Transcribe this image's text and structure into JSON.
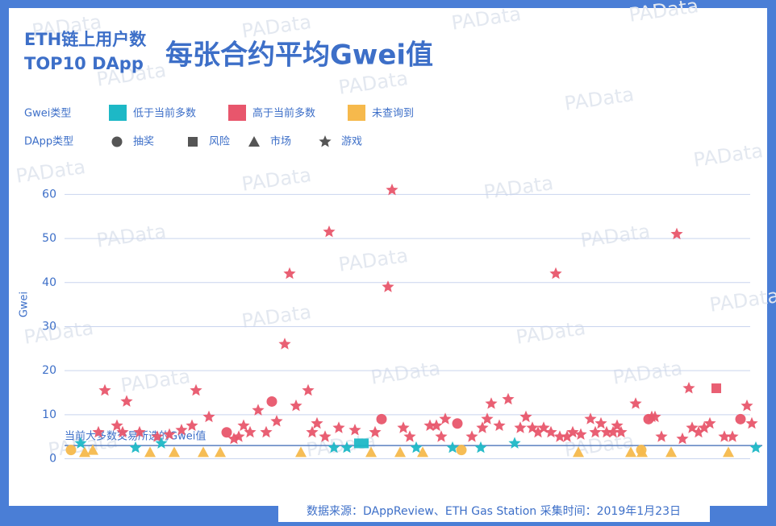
{
  "watermark": "PAData",
  "chart_data": {
    "type": "scatter",
    "title_small": [
      "ETH链上用户数",
      "TOP10 DApp"
    ],
    "title": "每张合约平均Gwei值",
    "ylabel": "Gwei",
    "source": "数据来源：DAppReview、ETH Gas Station  采集时间：2019年1月23日",
    "legend": {
      "gwei_title": "Gwei类型",
      "gwei_items": [
        {
          "label": "低于当前多数",
          "color": "#1db8c6"
        },
        {
          "label": "高于当前多数",
          "color": "#e8566c"
        },
        {
          "label": "未查询到",
          "color": "#f6b94c"
        }
      ],
      "dapp_title": "DApp类型",
      "dapp_items": [
        {
          "label": "抽奖",
          "marker": "circle"
        },
        {
          "label": "风险",
          "marker": "square"
        },
        {
          "label": "市场",
          "marker": "triangle"
        },
        {
          "label": "游戏",
          "marker": "star"
        }
      ]
    },
    "reference_line": {
      "value": 3,
      "label": "当前大多数交易所选的Gwei值",
      "color": "#5a7fc0"
    },
    "xlim": [
      70,
      945
    ],
    "ylim": [
      -1,
      63
    ],
    "yticks": [
      0,
      10,
      20,
      30,
      40,
      50,
      60
    ],
    "grid": true,
    "series": [
      {
        "color": "#e8566c",
        "marker": "star",
        "x": [
          130,
          122,
          145,
          157,
          152,
          173,
          195,
          210,
          225,
          238,
          243,
          259,
          290,
          296,
          302,
          310,
          320,
          330,
          343,
          353,
          359,
          367,
          382,
          387,
          393,
          403,
          408,
          420,
          440,
          465,
          481,
          486,
          500,
          508,
          533,
          541,
          547,
          552,
          585,
          598,
          604,
          609,
          619,
          630,
          645,
          652,
          660,
          667,
          674,
          683,
          689,
          694,
          703,
          710,
          720,
          732,
          738,
          745,
          752,
          760,
          765,
          770,
          788,
          808,
          812,
          820,
          839,
          846,
          854,
          858,
          866,
          873,
          880,
          898,
          908,
          926,
          932
        ],
        "values": [
          15.5,
          6,
          7.5,
          13,
          6,
          6,
          5,
          5.5,
          6.5,
          7.5,
          15.5,
          9.5,
          4.5,
          5,
          7.5,
          6,
          11,
          6,
          8.5,
          26,
          42,
          12,
          15.5,
          6,
          8,
          5,
          51.5,
          7,
          6.5,
          6,
          39,
          61,
          7,
          5,
          7.5,
          7.5,
          5,
          9,
          5,
          7,
          9,
          12.5,
          7.5,
          13.5,
          7,
          9.5,
          7,
          6,
          7,
          6,
          42,
          5,
          5,
          6,
          5.5,
          9,
          6,
          8,
          6,
          6,
          7.5,
          6,
          12.5,
          9.5,
          9.5,
          5,
          51,
          4.5,
          16,
          7,
          6,
          7,
          8,
          5,
          5,
          12,
          8
        ]
      },
      {
        "color": "#e8566c",
        "marker": "circle",
        "x": [
          281,
          337,
          473,
          567,
          804,
          918
        ],
        "values": [
          6,
          13,
          9,
          8,
          9,
          9
        ]
      },
      {
        "color": "#e8566c",
        "marker": "square",
        "x": [
          888
        ],
        "values": [
          16
        ]
      },
      {
        "color": "#f6b94c",
        "marker": "circle",
        "x": [
          88,
          572,
          795
        ],
        "values": [
          2,
          2,
          2
        ]
      },
      {
        "color": "#f6b94c",
        "marker": "triangle",
        "x": [
          105,
          115,
          186,
          216,
          252,
          273,
          373,
          460,
          496,
          524,
          717,
          782,
          796,
          832,
          903
        ],
        "values": [
          1.5,
          2,
          1.5,
          1.5,
          1.5,
          1.5,
          1.5,
          1.5,
          1.5,
          1.5,
          1.5,
          1.5,
          1.5,
          1.5,
          1.5
        ]
      },
      {
        "color": "#1db8c6",
        "marker": "star",
        "x": [
          100,
          168,
          200,
          414,
          430,
          516,
          561,
          596,
          638,
          937
        ],
        "values": [
          3.5,
          2.5,
          3.5,
          2.5,
          2.5,
          2.5,
          2.5,
          2.5,
          3.5,
          2.5
        ]
      },
      {
        "color": "#1db8c6",
        "marker": "square",
        "x": [
          448
        ],
        "values": [
          3.5
        ]
      }
    ]
  }
}
